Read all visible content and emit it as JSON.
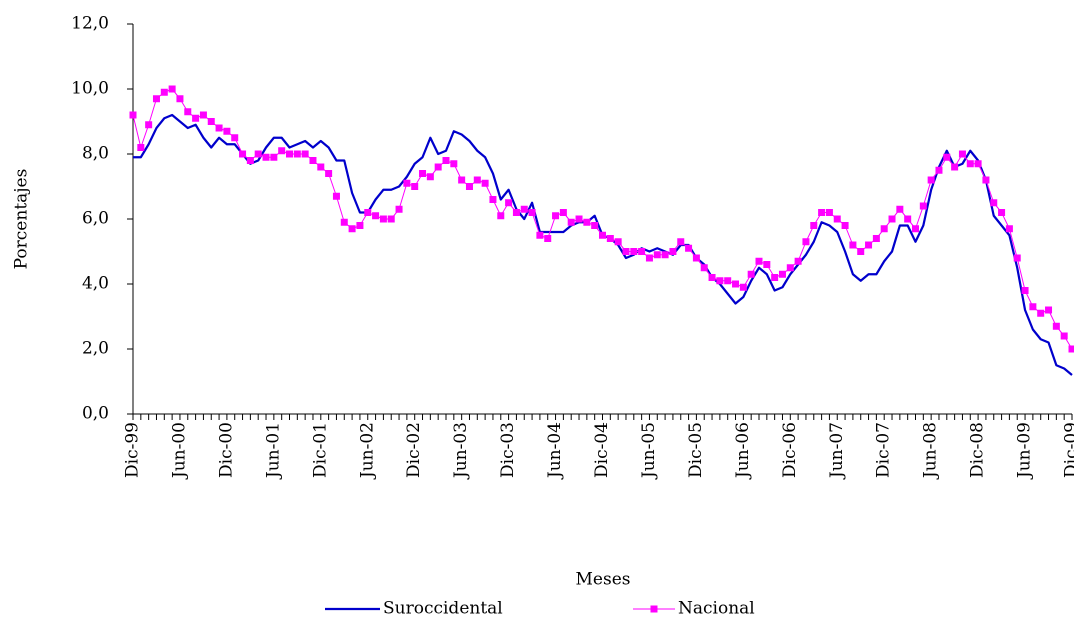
{
  "chart_data": {
    "type": "line",
    "ylabel": "Porcentajes",
    "xlabel": "Meses",
    "categories": [
      "Dic-99",
      null,
      null,
      null,
      null,
      null,
      "Jun-00",
      null,
      null,
      null,
      null,
      null,
      "Dic-00",
      null,
      null,
      null,
      null,
      null,
      "Jun-01",
      null,
      null,
      null,
      null,
      null,
      "Dic-01",
      null,
      null,
      null,
      null,
      null,
      "Jun-02",
      null,
      null,
      null,
      null,
      null,
      "Dic-02",
      null,
      null,
      null,
      null,
      null,
      "Jun-03",
      null,
      null,
      null,
      null,
      null,
      "Dic-03",
      null,
      null,
      null,
      null,
      null,
      "Jun-04",
      null,
      null,
      null,
      null,
      null,
      "Dic-04",
      null,
      null,
      null,
      null,
      null,
      "Jun-05",
      null,
      null,
      null,
      null,
      null,
      "Dic-05",
      null,
      null,
      null,
      null,
      null,
      "Jun-06",
      null,
      null,
      null,
      null,
      null,
      "Dic-06",
      null,
      null,
      null,
      null,
      null,
      "Jun-07",
      null,
      null,
      null,
      null,
      null,
      "Dic-07",
      null,
      null,
      null,
      null,
      null,
      "Jun-08",
      null,
      null,
      null,
      null,
      null,
      "Dic-08",
      null,
      null,
      null,
      null,
      null,
      "Jun-09",
      null,
      null,
      null,
      null,
      null,
      "Dic-09"
    ],
    "series": [
      {
        "name": "Suroccidental",
        "color": "#0000cc",
        "values": [
          7.9,
          7.9,
          8.3,
          8.8,
          9.1,
          9.2,
          9.0,
          8.8,
          8.9,
          8.5,
          8.2,
          8.5,
          8.3,
          8.3,
          8.0,
          7.7,
          7.8,
          8.2,
          8.5,
          8.5,
          8.2,
          8.3,
          8.4,
          8.2,
          8.4,
          8.2,
          7.8,
          7.8,
          6.8,
          6.2,
          6.2,
          6.6,
          6.9,
          6.9,
          7.0,
          7.3,
          7.7,
          7.9,
          8.5,
          8.0,
          8.1,
          8.7,
          8.6,
          8.4,
          8.1,
          7.9,
          7.4,
          6.6,
          6.9,
          6.3,
          6.0,
          6.5,
          5.6,
          5.6,
          5.6,
          5.6,
          5.8,
          5.9,
          5.9,
          6.1,
          5.5,
          5.4,
          5.2,
          4.8,
          4.9,
          5.1,
          5.0,
          5.1,
          5.0,
          4.9,
          5.2,
          5.2,
          4.8,
          4.6,
          4.2,
          4.0,
          3.7,
          3.4,
          3.6,
          4.1,
          4.5,
          4.3,
          3.8,
          3.9,
          4.3,
          4.6,
          4.9,
          5.3,
          5.9,
          5.8,
          5.6,
          5.0,
          4.3,
          4.1,
          4.3,
          4.3,
          4.7,
          5.0,
          5.8,
          5.8,
          5.3,
          5.8,
          6.9,
          7.6,
          8.1,
          7.6,
          7.7,
          8.1,
          7.8,
          7.2,
          6.1,
          5.8,
          5.5,
          4.5,
          3.2,
          2.6,
          2.3,
          2.2,
          1.5,
          1.4,
          1.2
        ]
      },
      {
        "name": "Nacional",
        "color": "#ff00ff",
        "marker": "square",
        "values": [
          9.2,
          8.2,
          8.9,
          9.7,
          9.9,
          10.0,
          9.7,
          9.3,
          9.1,
          9.2,
          9.0,
          8.8,
          8.7,
          8.5,
          8.0,
          7.8,
          8.0,
          7.9,
          7.9,
          8.1,
          8.0,
          8.0,
          8.0,
          7.8,
          7.6,
          7.4,
          6.7,
          5.9,
          5.7,
          5.8,
          6.2,
          6.1,
          6.0,
          6.0,
          6.3,
          7.1,
          7.0,
          7.4,
          7.3,
          7.6,
          7.8,
          7.7,
          7.2,
          7.0,
          7.2,
          7.1,
          6.6,
          6.1,
          6.5,
          6.2,
          6.3,
          6.2,
          5.5,
          5.4,
          6.1,
          6.2,
          5.9,
          6.0,
          5.9,
          5.8,
          5.5,
          5.4,
          5.3,
          5.0,
          5.0,
          5.0,
          4.8,
          4.9,
          4.9,
          5.0,
          5.3,
          5.1,
          4.8,
          4.5,
          4.2,
          4.1,
          4.1,
          4.0,
          3.9,
          4.3,
          4.7,
          4.6,
          4.2,
          4.3,
          4.5,
          4.7,
          5.3,
          5.8,
          6.2,
          6.2,
          6.0,
          5.8,
          5.2,
          5.0,
          5.2,
          5.4,
          5.7,
          6.0,
          6.3,
          6.0,
          5.7,
          6.4,
          7.2,
          7.5,
          7.9,
          7.6,
          8.0,
          7.7,
          7.7,
          7.2,
          6.5,
          6.2,
          5.7,
          4.8,
          3.8,
          3.3,
          3.1,
          3.2,
          2.7,
          2.4,
          2.0
        ]
      }
    ],
    "ylim": [
      0,
      12
    ],
    "yticks": [
      {
        "value": 0,
        "label": "0,0"
      },
      {
        "value": 2,
        "label": "2,0"
      },
      {
        "value": 4,
        "label": "4,0"
      },
      {
        "value": 6,
        "label": "6,0"
      },
      {
        "value": 8,
        "label": "8,0"
      },
      {
        "value": 10,
        "label": "10,0"
      },
      {
        "value": 12,
        "label": "12,0"
      }
    ],
    "legend": "bottom"
  }
}
